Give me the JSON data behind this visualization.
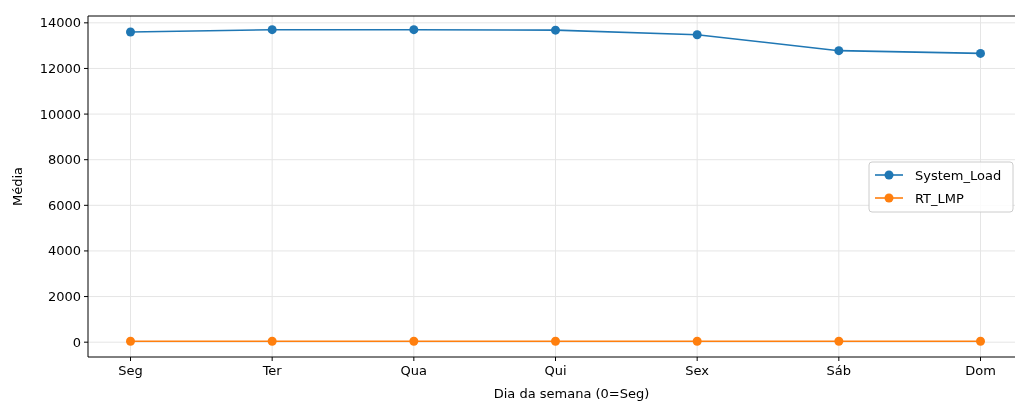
{
  "chart_data": {
    "type": "line",
    "xlabel": "Dia da semana (0=Seg)",
    "ylabel": "Média",
    "categories": [
      "Seg",
      "Ter",
      "Qua",
      "Qui",
      "Sex",
      "Sáb",
      "Dom"
    ],
    "series": [
      {
        "name": "System_Load",
        "color": "#1f77b4",
        "values": [
          13600,
          13700,
          13700,
          13680,
          13480,
          12780,
          12660
        ]
      },
      {
        "name": "RT_LMP",
        "color": "#ff7f0e",
        "values": [
          40,
          40,
          40,
          40,
          40,
          40,
          40
        ]
      }
    ],
    "ylim": [
      -650,
      14300
    ],
    "yticks": [
      0,
      2000,
      4000,
      6000,
      8000,
      10000,
      12000,
      14000
    ],
    "grid": true,
    "legend": "right",
    "marker": "circle"
  }
}
